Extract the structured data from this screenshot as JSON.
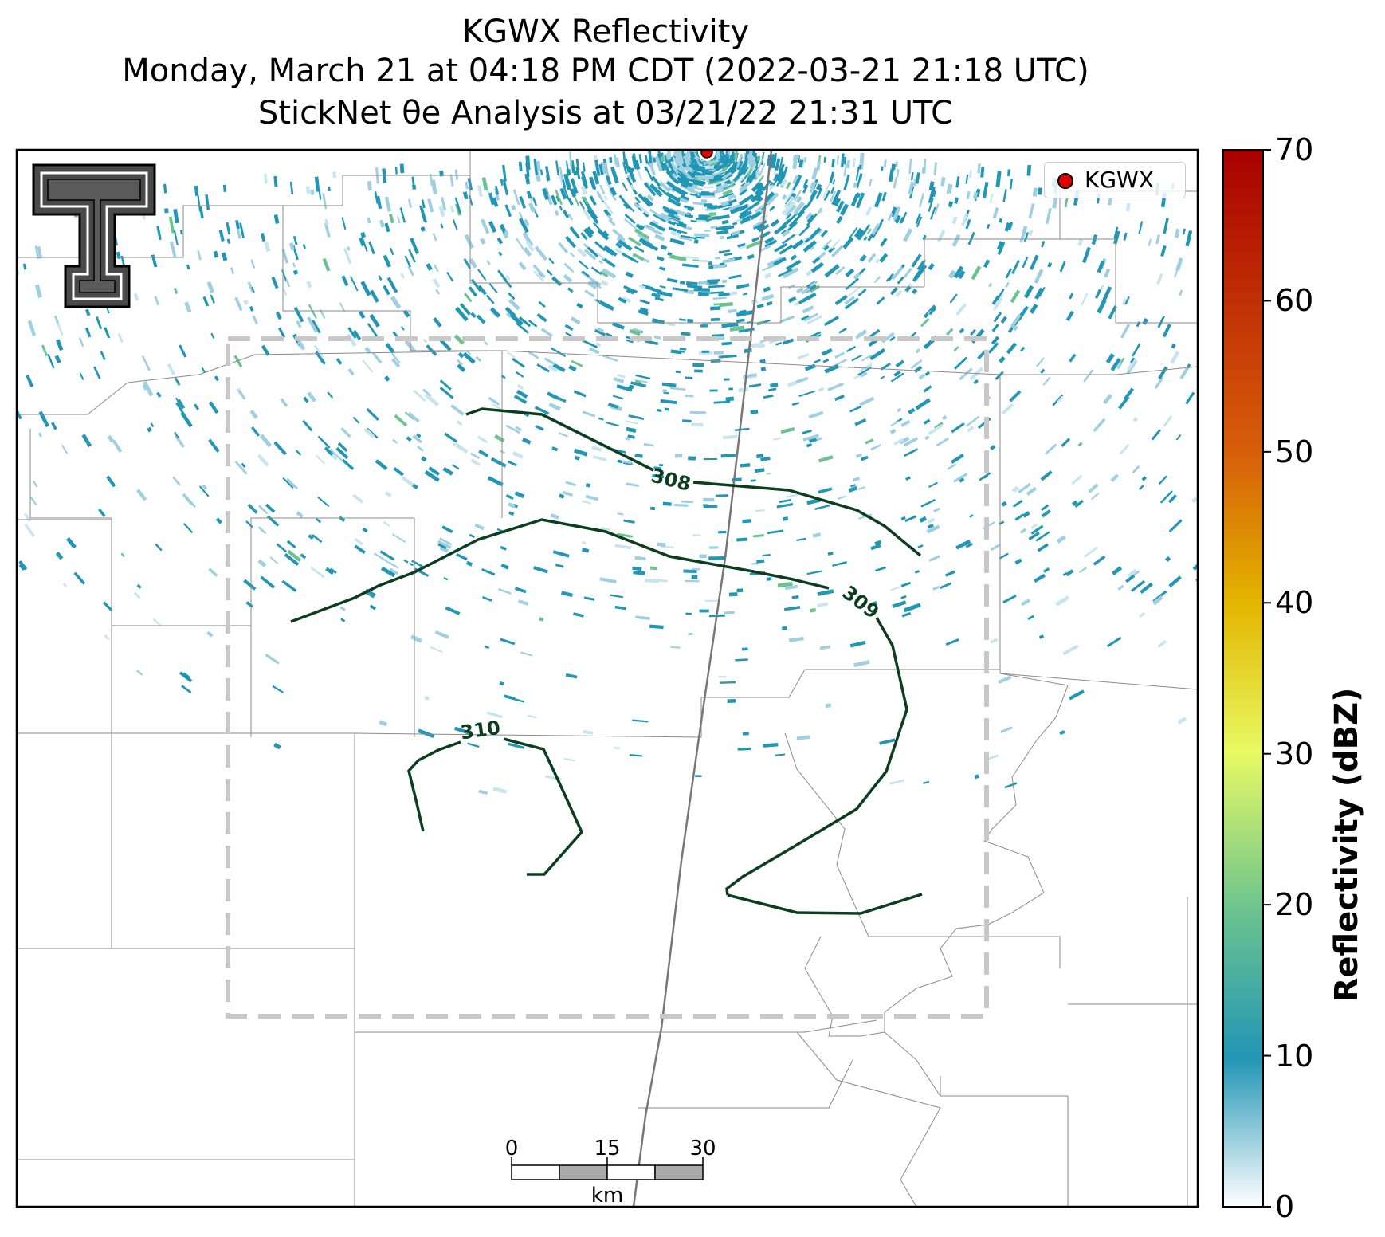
{
  "title": {
    "line1": "KGWX Reflectivity",
    "line2": "Monday, March 21 at 04:18 PM CDT (2022-03-21 21:18 UTC)",
    "line3": "StickNet θe Analysis at 03/21/22 21:31 UTC"
  },
  "legend": {
    "label": "KGWX",
    "marker_color": "#e00000"
  },
  "colorbar": {
    "label": "Reflectivity (dBZ)",
    "ticks": [
      "70",
      "60",
      "50",
      "40",
      "30",
      "20",
      "10",
      "0"
    ],
    "range": [
      0,
      70
    ],
    "colors": [
      "#ffffff",
      "#2196b5",
      "#6cc38f",
      "#e8fa64",
      "#e3b600",
      "#d8600a",
      "#a90000"
    ]
  },
  "contours": [
    {
      "value": "308"
    },
    {
      "value": "309"
    },
    {
      "value": "310"
    }
  ],
  "scale_bar": {
    "ticks": [
      "0",
      "15",
      "30"
    ],
    "unit": "km"
  },
  "colors": {
    "contour": "#0b3d1f",
    "analysis_box": "#c8c8c8",
    "county_lines": "#8a8a8a",
    "radar_echo": "#2196b5"
  },
  "logo": {
    "name": "texas-tech-logo"
  }
}
